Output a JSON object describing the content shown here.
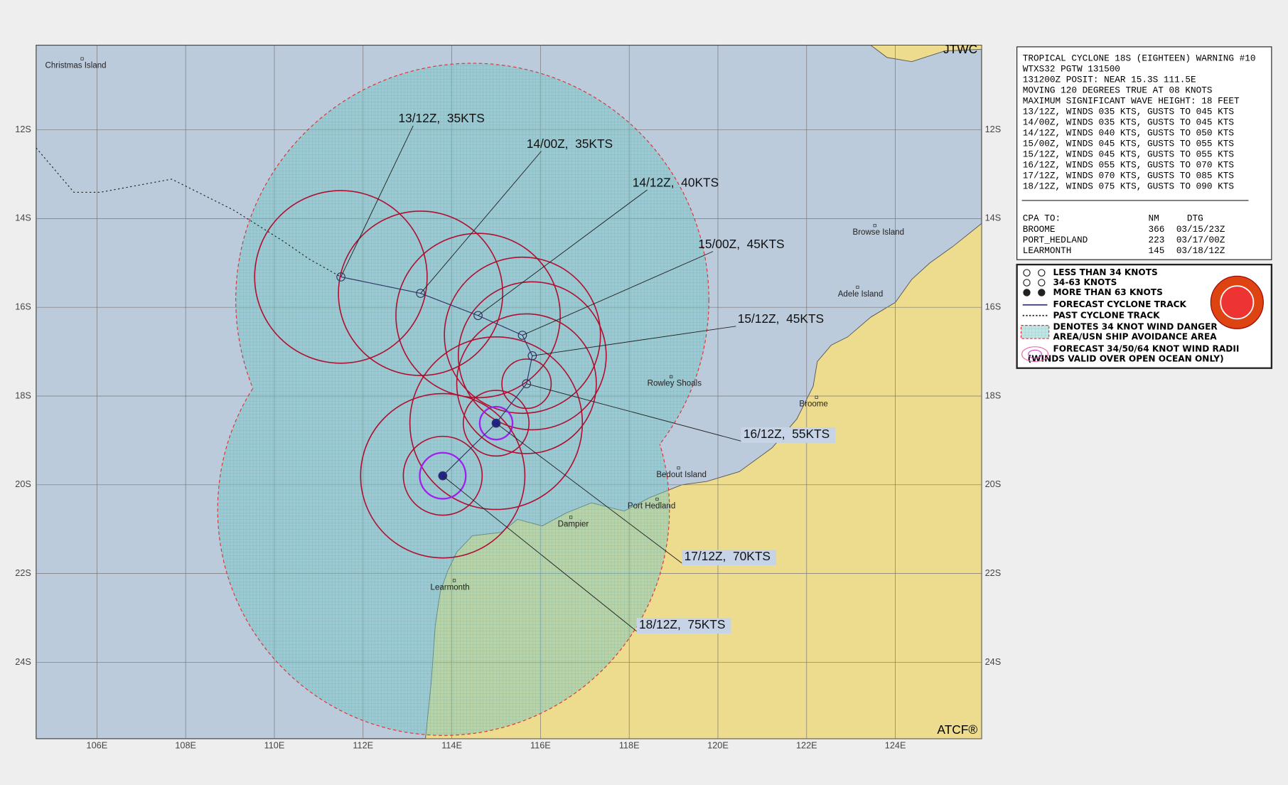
{
  "header": {
    "agency": "JTWC",
    "footer": "ATCF®"
  },
  "axes": {
    "longitudes": [
      "106E",
      "108E",
      "110E",
      "112E",
      "114E",
      "116E",
      "118E",
      "120E",
      "122E",
      "124E"
    ],
    "latitudes": [
      "12S",
      "14S",
      "16S",
      "18S",
      "20S",
      "22S",
      "24S"
    ]
  },
  "places": [
    "Christmas Island",
    "Browse Island",
    "Adele Island",
    "Rowley Shoals",
    "Broome",
    "Bedout Island",
    "Port Hedland",
    "Dampier",
    "Learmonth"
  ],
  "track_labels": [
    "13/12Z,  35KTS",
    "14/00Z,  35KTS",
    "14/12Z,  40KTS",
    "15/00Z,  45KTS",
    "15/12Z,  45KTS",
    "16/12Z,  55KTS",
    "17/12Z,  70KTS",
    "18/12Z,  75KTS"
  ],
  "warning": {
    "lines": [
      "TROPICAL CYCLONE 18S (EIGHTEEN) WARNING #10",
      "WTXS32 PGTW 131500",
      "131200Z POSIT: NEAR 15.3S 111.5E",
      "MOVING 120 DEGREES TRUE AT 08 KNOTS",
      "MAXIMUM SIGNIFICANT WAVE HEIGHT: 18 FEET",
      "13/12Z, WINDS 035 KTS, GUSTS TO 045 KTS",
      "14/00Z, WINDS 035 KTS, GUSTS TO 045 KTS",
      "14/12Z, WINDS 040 KTS, GUSTS TO 050 KTS",
      "15/00Z, WINDS 045 KTS, GUSTS TO 055 KTS",
      "15/12Z, WINDS 045 KTS, GUSTS TO 055 KTS",
      "16/12Z, WINDS 055 KTS, GUSTS TO 070 KTS",
      "17/12Z, WINDS 070 KTS, GUSTS TO 085 KTS",
      "18/12Z, WINDS 075 KTS, GUSTS TO 090 KTS"
    ],
    "cpa_header": [
      "CPA TO:",
      "NM",
      "DTG"
    ],
    "cpa_rows": [
      [
        "BROOME",
        "366",
        "03/15/23Z"
      ],
      [
        "PORT_HEDLAND",
        "223",
        "03/17/00Z"
      ],
      [
        "LEARMONTH",
        "145",
        "03/18/12Z"
      ]
    ]
  },
  "legend": [
    "LESS THAN 34 KNOTS",
    "34-63 KNOTS",
    "MORE THAN 63 KNOTS",
    "FORECAST CYCLONE TRACK",
    "PAST CYCLONE TRACK",
    "DENOTES 34 KNOT WIND DANGER",
    "AREA/USN SHIP AVOIDANCE AREA",
    "FORECAST 34/50/64 KNOT WIND RADII",
    "(WINDS VALID OVER OPEN OCEAN ONLY)"
  ]
}
